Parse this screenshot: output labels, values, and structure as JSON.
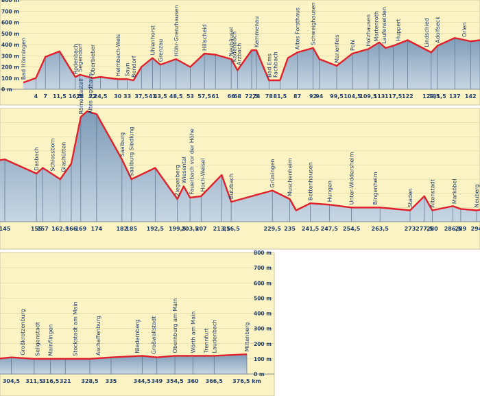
{
  "chart_data": {
    "type": "area",
    "title": "",
    "xlabel": "",
    "ylabel": "",
    "x_unit": "km",
    "y_unit": "m",
    "ylim": [
      0,
      800
    ],
    "y_ticks": [
      0,
      100,
      200,
      300,
      400,
      500,
      600,
      700,
      800
    ],
    "y_tick_labels": [
      "0 m",
      "100 m",
      "200 m",
      "300 m",
      "400 m",
      "500 m",
      "600 m",
      "700 m",
      "800 m"
    ],
    "colors": {
      "line": "#e0202a",
      "fill_top": "#7f9cb8",
      "fill_bottom": "#c8d6e3",
      "background": "#fbf3c4",
      "frame": "#c9c2a0"
    },
    "panels": [
      {
        "xlim": [
          0,
          145
        ]
      },
      {
        "xlim": [
          145,
          300
        ]
      },
      {
        "xlim": [
          300,
          380
        ]
      }
    ],
    "ticks": [
      {
        "x": 4,
        "label": "4"
      },
      {
        "x": 7,
        "label": "7"
      },
      {
        "x": 11.5,
        "label": "11,5"
      },
      {
        "x": 16.5,
        "label": "16,5"
      },
      {
        "x": 18,
        "label": "18"
      },
      {
        "x": 22,
        "label": "22"
      },
      {
        "x": 24.5,
        "label": "24,5"
      },
      {
        "x": 30,
        "label": "30"
      },
      {
        "x": 33,
        "label": "33"
      },
      {
        "x": 37.5,
        "label": "37,5"
      },
      {
        "x": 41,
        "label": "41"
      },
      {
        "x": 43.5,
        "label": "43,5"
      },
      {
        "x": 48.5,
        "label": "48,5"
      },
      {
        "x": 53,
        "label": "53"
      },
      {
        "x": 57.5,
        "label": "57,5"
      },
      {
        "x": 61,
        "label": "61"
      },
      {
        "x": 66,
        "label": "66"
      },
      {
        "x": 68,
        "label": "68"
      },
      {
        "x": 72.5,
        "label": "72,5"
      },
      {
        "x": 74,
        "label": "74"
      },
      {
        "x": 78,
        "label": "78"
      },
      {
        "x": 81.5,
        "label": "81,5"
      },
      {
        "x": 87,
        "label": "87"
      },
      {
        "x": 92,
        "label": "92"
      },
      {
        "x": 94,
        "label": "94"
      },
      {
        "x": 99.5,
        "label": "99,5"
      },
      {
        "x": 104.5,
        "label": "104,5"
      },
      {
        "x": 109.5,
        "label": "109,5"
      },
      {
        "x": 113,
        "label": "113"
      },
      {
        "x": 117.5,
        "label": "117,5"
      },
      {
        "x": 122,
        "label": "122"
      },
      {
        "x": 129.5,
        "label": "129,5"
      },
      {
        "x": 131.5,
        "label": "131,5"
      },
      {
        "x": 137,
        "label": "137"
      },
      {
        "x": 142,
        "label": "142"
      },
      {
        "x": 145,
        "label": "145"
      },
      {
        "x": 155,
        "label": "155"
      },
      {
        "x": 157,
        "label": "157"
      },
      {
        "x": 162.5,
        "label": "162,5"
      },
      {
        "x": 166,
        "label": "166"
      },
      {
        "x": 169,
        "label": "169"
      },
      {
        "x": 174,
        "label": "174"
      },
      {
        "x": 182,
        "label": "182"
      },
      {
        "x": 185,
        "label": "185"
      },
      {
        "x": 192.5,
        "label": "192,5"
      },
      {
        "x": 199.5,
        "label": "199,5"
      },
      {
        "x": 203.5,
        "label": "203,5"
      },
      {
        "x": 207,
        "label": "207"
      },
      {
        "x": 213.5,
        "label": "213,5"
      },
      {
        "x": 216.5,
        "label": "216,5"
      },
      {
        "x": 229.5,
        "label": "229,5"
      },
      {
        "x": 235,
        "label": "235"
      },
      {
        "x": 241.5,
        "label": "241,5"
      },
      {
        "x": 247.5,
        "label": "247,5"
      },
      {
        "x": 254.5,
        "label": "254,5"
      },
      {
        "x": 263.5,
        "label": "263,5"
      },
      {
        "x": 273,
        "label": "273"
      },
      {
        "x": 277.5,
        "label": "277,5"
      },
      {
        "x": 280,
        "label": "280"
      },
      {
        "x": 286.5,
        "label": "286,5"
      },
      {
        "x": 289,
        "label": "289"
      },
      {
        "x": 294,
        "label": "294"
      },
      {
        "x": 304.5,
        "label": "304,5"
      },
      {
        "x": 311.5,
        "label": "311,5"
      },
      {
        "x": 316.5,
        "label": "316,5"
      },
      {
        "x": 321,
        "label": "321"
      },
      {
        "x": 328.5,
        "label": "328,5"
      },
      {
        "x": 335,
        "label": "335"
      },
      {
        "x": 344.5,
        "label": "344,5"
      },
      {
        "x": 349,
        "label": "349"
      },
      {
        "x": 354.5,
        "label": "354,5"
      },
      {
        "x": 360,
        "label": "360"
      },
      {
        "x": 366.5,
        "label": "366,5"
      },
      {
        "x": 376.5,
        "label": "376,5 km"
      }
    ],
    "places": [
      {
        "name": "Bad Hönningen",
        "x": 0
      },
      {
        "name": "Rodenbach",
        "x": 16.5
      },
      {
        "name": "Segendorf",
        "x": 18
      },
      {
        "name": "Oberbieber",
        "x": 22
      },
      {
        "name": "Heimbach-Weis",
        "x": 30
      },
      {
        "name": "Sayn",
        "x": 33
      },
      {
        "name": "Bendorf",
        "x": 35
      },
      {
        "name": "Uhlenhorst",
        "x": 41
      },
      {
        "name": "Grenzau",
        "x": 43.5
      },
      {
        "name": "Höhr-Grenzhausen",
        "x": 48.5
      },
      {
        "name": "Hillscheid",
        "x": 57.5
      },
      {
        "name": "Neuhäusel",
        "x": 66
      },
      {
        "name": "Kadenbach",
        "x": 67
      },
      {
        "name": "Arzbach",
        "x": 68.5
      },
      {
        "name": "Kemmenau",
        "x": 74
      },
      {
        "name": "Bad Ems",
        "x": 78
      },
      {
        "name": "Fachbach",
        "x": 80
      },
      {
        "name": "Altes Forsthaus",
        "x": 87
      },
      {
        "name": "Schweighausen",
        "x": 92
      },
      {
        "name": "Marienfels",
        "x": 99.5
      },
      {
        "name": "Pohl",
        "x": 104.5
      },
      {
        "name": "Holzhausen",
        "x": 109.5
      },
      {
        "name": "Martenroth",
        "x": 112
      },
      {
        "name": "Laufenselden",
        "x": 114.5
      },
      {
        "name": "Huppert",
        "x": 119
      },
      {
        "name": "Lindschied",
        "x": 128
      },
      {
        "name": "Adolfseck",
        "x": 131.5
      },
      {
        "name": "Orlen",
        "x": 140
      },
      {
        "name": "Dasbach",
        "x": 155
      },
      {
        "name": "Schlossborn",
        "x": 160
      },
      {
        "name": "Glashütten",
        "x": 163.5
      },
      {
        "name": "Römerkastell",
        "x": 169
      },
      {
        "name": "Altes Jagdhaus",
        "x": 172
      },
      {
        "name": "Saalburg",
        "x": 182
      },
      {
        "name": "Saalburg Siedlung",
        "x": 185
      },
      {
        "name": "Ziegenberg",
        "x": 199.5
      },
      {
        "name": "Wiesental",
        "x": 201.5
      },
      {
        "name": "Fauerbach vor der Höhe",
        "x": 204
      },
      {
        "name": "Hoch-Weisel",
        "x": 207.5
      },
      {
        "name": "Butzbach",
        "x": 216.5
      },
      {
        "name": "Grüningen",
        "x": 229.5
      },
      {
        "name": "Muschenheim",
        "x": 235
      },
      {
        "name": "Bettenhausen",
        "x": 241.5
      },
      {
        "name": "Hungen",
        "x": 247.5
      },
      {
        "name": "Unter-Widdersheim",
        "x": 254.5
      },
      {
        "name": "Bingenheim",
        "x": 262
      },
      {
        "name": "Staden",
        "x": 273
      },
      {
        "name": "Altenstadt",
        "x": 280
      },
      {
        "name": "Marköbel",
        "x": 287
      },
      {
        "name": "Neuberg",
        "x": 294
      },
      {
        "name": "Großkrotzenburg",
        "x": 308
      },
      {
        "name": "Seligenstadt",
        "x": 312.5
      },
      {
        "name": "Mainflingen",
        "x": 316.5
      },
      {
        "name": "Stockstadt am Main",
        "x": 324
      },
      {
        "name": "Aschaffenburg",
        "x": 331
      },
      {
        "name": "Niedernberg",
        "x": 343
      },
      {
        "name": "Großwallstadt",
        "x": 348
      },
      {
        "name": "Obernburg am Main",
        "x": 354.5
      },
      {
        "name": "Wörth am Main",
        "x": 360
      },
      {
        "name": "Trennfurt",
        "x": 364
      },
      {
        "name": "Laudenbach",
        "x": 366.5
      },
      {
        "name": "Miltenberg",
        "x": 376.5
      }
    ],
    "profile": [
      {
        "x": 0,
        "y": 60
      },
      {
        "x": 4,
        "y": 100
      },
      {
        "x": 7,
        "y": 290
      },
      {
        "x": 11.5,
        "y": 340
      },
      {
        "x": 16.5,
        "y": 110
      },
      {
        "x": 18,
        "y": 130
      },
      {
        "x": 22,
        "y": 100
      },
      {
        "x": 24.5,
        "y": 110
      },
      {
        "x": 30,
        "y": 90
      },
      {
        "x": 33,
        "y": 90
      },
      {
        "x": 35,
        "y": 80
      },
      {
        "x": 37.5,
        "y": 200
      },
      {
        "x": 41,
        "y": 280
      },
      {
        "x": 43.5,
        "y": 220
      },
      {
        "x": 48.5,
        "y": 270
      },
      {
        "x": 53,
        "y": 200
      },
      {
        "x": 57.5,
        "y": 320
      },
      {
        "x": 61,
        "y": 310
      },
      {
        "x": 66,
        "y": 270
      },
      {
        "x": 68,
        "y": 170
      },
      {
        "x": 72.5,
        "y": 350
      },
      {
        "x": 74,
        "y": 350
      },
      {
        "x": 78,
        "y": 80
      },
      {
        "x": 81.5,
        "y": 80
      },
      {
        "x": 84,
        "y": 280
      },
      {
        "x": 87,
        "y": 330
      },
      {
        "x": 92,
        "y": 370
      },
      {
        "x": 94,
        "y": 270
      },
      {
        "x": 99.5,
        "y": 210
      },
      {
        "x": 104.5,
        "y": 320
      },
      {
        "x": 109.5,
        "y": 360
      },
      {
        "x": 113,
        "y": 420
      },
      {
        "x": 115,
        "y": 370
      },
      {
        "x": 117.5,
        "y": 390
      },
      {
        "x": 122,
        "y": 440
      },
      {
        "x": 129.5,
        "y": 330
      },
      {
        "x": 131.5,
        "y": 390
      },
      {
        "x": 137,
        "y": 460
      },
      {
        "x": 142,
        "y": 430
      },
      {
        "x": 145,
        "y": 440
      },
      {
        "x": 155,
        "y": 340
      },
      {
        "x": 157,
        "y": 380
      },
      {
        "x": 162.5,
        "y": 300
      },
      {
        "x": 166,
        "y": 410
      },
      {
        "x": 169,
        "y": 740
      },
      {
        "x": 171,
        "y": 780
      },
      {
        "x": 174,
        "y": 760
      },
      {
        "x": 182,
        "y": 440
      },
      {
        "x": 185,
        "y": 300
      },
      {
        "x": 192.5,
        "y": 380
      },
      {
        "x": 199.5,
        "y": 160
      },
      {
        "x": 201.5,
        "y": 250
      },
      {
        "x": 203.5,
        "y": 170
      },
      {
        "x": 207,
        "y": 180
      },
      {
        "x": 213.5,
        "y": 330
      },
      {
        "x": 216.5,
        "y": 140
      },
      {
        "x": 229.5,
        "y": 220
      },
      {
        "x": 235,
        "y": 160
      },
      {
        "x": 237,
        "y": 80
      },
      {
        "x": 241.5,
        "y": 130
      },
      {
        "x": 247.5,
        "y": 120
      },
      {
        "x": 254.5,
        "y": 100
      },
      {
        "x": 263.5,
        "y": 100
      },
      {
        "x": 273,
        "y": 80
      },
      {
        "x": 277.5,
        "y": 180
      },
      {
        "x": 280,
        "y": 80
      },
      {
        "x": 286.5,
        "y": 110
      },
      {
        "x": 289,
        "y": 90
      },
      {
        "x": 294,
        "y": 80
      },
      {
        "x": 300,
        "y": 100
      },
      {
        "x": 304.5,
        "y": 110
      },
      {
        "x": 311.5,
        "y": 100
      },
      {
        "x": 316.5,
        "y": 100
      },
      {
        "x": 321,
        "y": 100
      },
      {
        "x": 328.5,
        "y": 100
      },
      {
        "x": 335,
        "y": 110
      },
      {
        "x": 344.5,
        "y": 120
      },
      {
        "x": 349,
        "y": 110
      },
      {
        "x": 354.5,
        "y": 120
      },
      {
        "x": 360,
        "y": 120
      },
      {
        "x": 366.5,
        "y": 120
      },
      {
        "x": 376.5,
        "y": 130
      }
    ]
  }
}
